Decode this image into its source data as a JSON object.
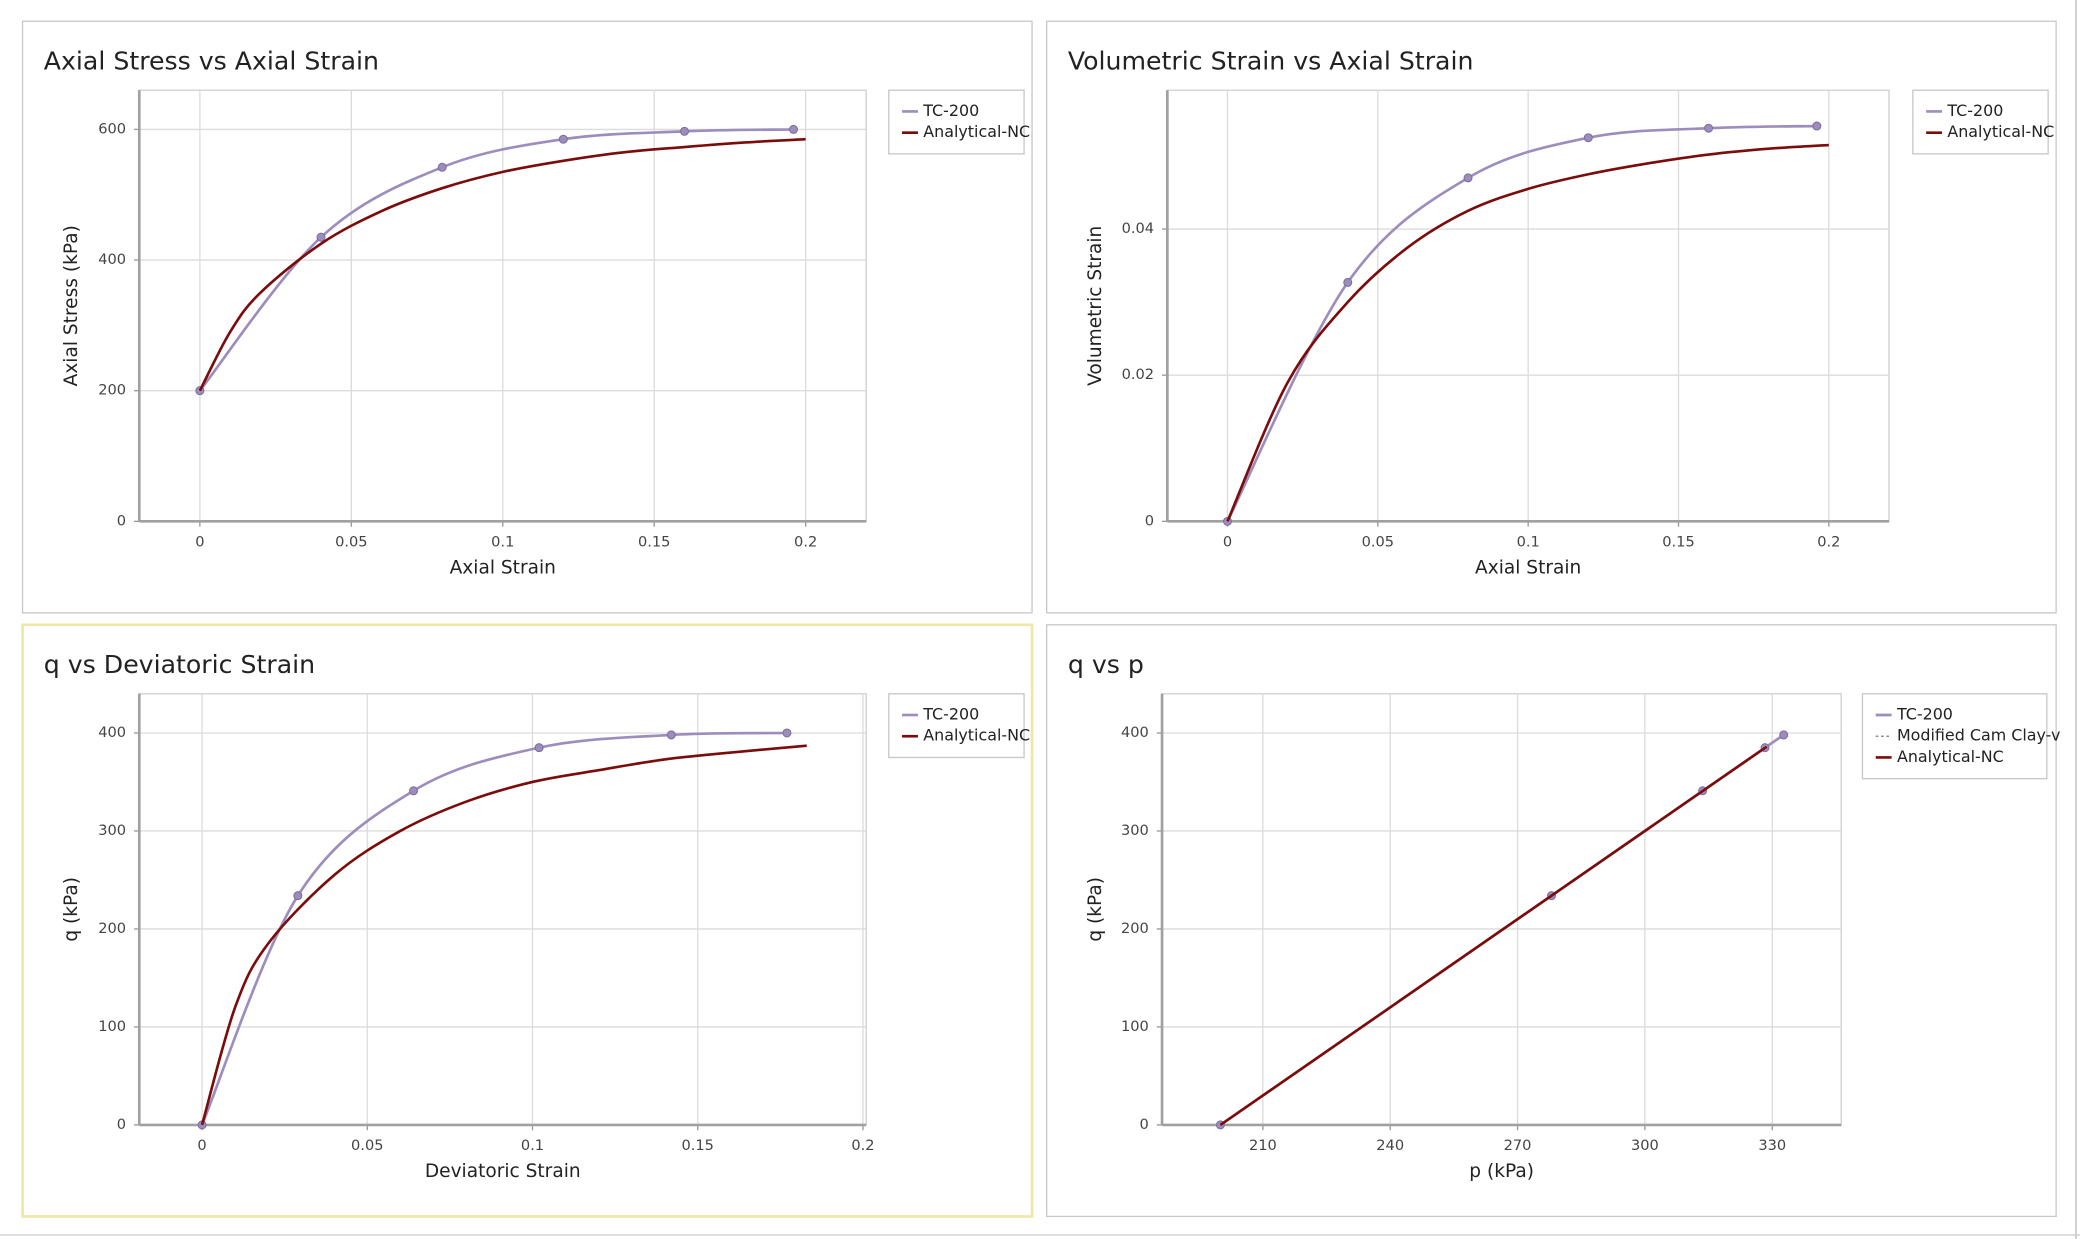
{
  "chart_data": [
    {
      "type": "line",
      "title": "Axial Stress vs Axial Strain",
      "x_label": "Axial Strain",
      "y_label": "Axial Stress (kPa)",
      "xlim": [
        -0.02,
        0.22
      ],
      "ylim": [
        0,
        660
      ],
      "xticks": [
        0,
        0.05,
        0.1,
        0.15,
        0.2
      ],
      "yticks": [
        0,
        200,
        400,
        600
      ],
      "grid": true,
      "legend": "upper right",
      "series": [
        {
          "name": "TC-200",
          "color": "#9d8dbd",
          "markers": true,
          "x": [
            0,
            0.04,
            0.08,
            0.12,
            0.16,
            0.196
          ],
          "values": [
            200,
            435,
            542,
            585,
            597,
            600
          ]
        },
        {
          "name": "Analytical-NC",
          "color": "#7b0c0c",
          "markers": false,
          "x": [
            0,
            0.01,
            0.02,
            0.04,
            0.06,
            0.08,
            0.1,
            0.12,
            0.14,
            0.16,
            0.18,
            0.2
          ],
          "values": [
            200,
            290,
            350,
            425,
            475,
            510,
            535,
            552,
            565,
            573,
            580,
            585
          ]
        }
      ]
    },
    {
      "type": "line",
      "title": "Volumetric Strain vs Axial Strain",
      "x_label": "Axial Strain",
      "y_label": "Volumetric Strain",
      "xlim": [
        -0.02,
        0.22
      ],
      "ylim": [
        0,
        0.059
      ],
      "xticks": [
        0,
        0.05,
        0.1,
        0.15,
        0.2
      ],
      "yticks": [
        0,
        0.02,
        0.04
      ],
      "grid": true,
      "legend": "upper right",
      "series": [
        {
          "name": "TC-200",
          "color": "#9d8dbd",
          "markers": true,
          "x": [
            0,
            0.04,
            0.08,
            0.12,
            0.16,
            0.196
          ],
          "values": [
            0,
            0.0327,
            0.047,
            0.0525,
            0.0538,
            0.0541
          ]
        },
        {
          "name": "Analytical-NC",
          "color": "#7b0c0c",
          "markers": false,
          "x": [
            0,
            0.02,
            0.04,
            0.06,
            0.08,
            0.1,
            0.12,
            0.14,
            0.16,
            0.18,
            0.2
          ],
          "values": [
            0,
            0.019,
            0.03,
            0.0375,
            0.0425,
            0.0455,
            0.0475,
            0.049,
            0.0502,
            0.051,
            0.0515
          ]
        }
      ]
    },
    {
      "type": "line",
      "title": "q vs Deviatoric Strain",
      "x_label": "Deviatoric Strain",
      "y_label": "q (kPa)",
      "xlim": [
        -0.019,
        0.201
      ],
      "ylim": [
        0,
        440
      ],
      "xticks": [
        0,
        0.05,
        0.1,
        0.15,
        0.2
      ],
      "yticks": [
        0,
        100,
        200,
        300,
        400
      ],
      "grid": true,
      "legend": "upper right",
      "series": [
        {
          "name": "TC-200",
          "color": "#9d8dbd",
          "markers": true,
          "x": [
            0,
            0.029,
            0.064,
            0.102,
            0.142,
            0.177
          ],
          "values": [
            0,
            234,
            341,
            385,
            398,
            400
          ]
        },
        {
          "name": "Analytical-NC",
          "color": "#7b0c0c",
          "markers": false,
          "x": [
            0,
            0.01,
            0.02,
            0.04,
            0.06,
            0.08,
            0.1,
            0.12,
            0.14,
            0.16,
            0.183
          ],
          "values": [
            0,
            120,
            185,
            255,
            300,
            330,
            350,
            362,
            373,
            380,
            387
          ]
        }
      ]
    },
    {
      "type": "line",
      "title": "q vs p",
      "x_label": "p (kPa)",
      "y_label": "q (kPa)",
      "xlim": [
        186.25,
        346.25
      ],
      "ylim": [
        0,
        440
      ],
      "xticks": [
        210,
        240,
        270,
        300,
        330
      ],
      "yticks": [
        0,
        100,
        200,
        300,
        400
      ],
      "grid": true,
      "legend": "upper right",
      "series": [
        {
          "name": "TC-200",
          "color": "#9d8dbd",
          "markers": true,
          "x": [
            200,
            278,
            313.6,
            328.3,
            332.7
          ],
          "values": [
            0,
            234,
            341,
            385,
            398
          ]
        },
        {
          "name": "Modified Cam Clay-v",
          "color": "#8a8aa8",
          "markers": false,
          "style": "dotted",
          "x": [],
          "values": []
        },
        {
          "name": "Analytical-NC",
          "color": "#7b0c0c",
          "markers": false,
          "x": [
            200,
            328.7
          ],
          "values": [
            0,
            386
          ]
        }
      ]
    }
  ]
}
